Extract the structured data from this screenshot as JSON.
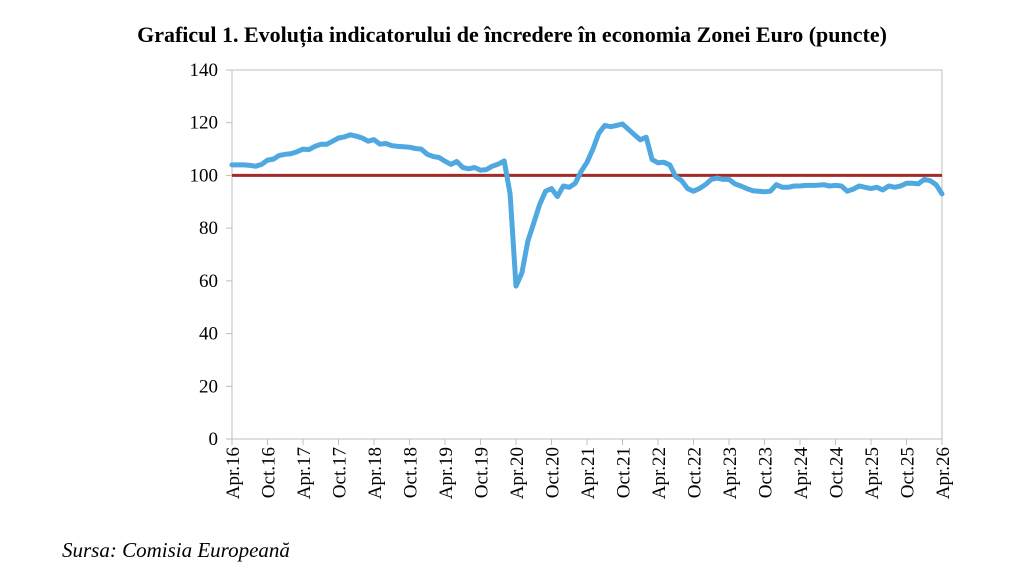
{
  "chart_data": {
    "type": "line",
    "title": "Graficul 1. Evoluția indicatorului de încredere în economia Zonei Euro (puncte)",
    "source": "Sursa: Comisia Europeană",
    "xlabel": "",
    "ylabel": "",
    "ylim": [
      0,
      140
    ],
    "yticks": [
      0,
      20,
      40,
      60,
      80,
      100,
      120,
      140
    ],
    "xticks": [
      "Apr.16",
      "Oct.16",
      "Apr.17",
      "Oct.17",
      "Apr.18",
      "Oct.18",
      "Apr.19",
      "Oct.19",
      "Apr.20",
      "Oct.20",
      "Apr.21",
      "Oct.21",
      "Apr.22",
      "Oct.22",
      "Apr.23",
      "Oct.23",
      "Apr.24",
      "Oct.24",
      "Apr.25",
      "Oct.25",
      "Apr.26"
    ],
    "x_range": [
      "2016-04",
      "2026-04"
    ],
    "grid": false,
    "legend": "none",
    "reference_line": {
      "value": 100,
      "color": "#a52a2a"
    },
    "series": [
      {
        "color": "#4fa8e0",
        "x": [
          "2016-04",
          "2016-05",
          "2016-06",
          "2016-07",
          "2016-08",
          "2016-09",
          "2016-10",
          "2016-11",
          "2016-12",
          "2017-01",
          "2017-02",
          "2017-03",
          "2017-04",
          "2017-05",
          "2017-06",
          "2017-07",
          "2017-08",
          "2017-09",
          "2017-10",
          "2017-11",
          "2017-12",
          "2018-01",
          "2018-02",
          "2018-03",
          "2018-04",
          "2018-05",
          "2018-06",
          "2018-07",
          "2018-08",
          "2018-09",
          "2018-10",
          "2018-11",
          "2018-12",
          "2019-01",
          "2019-02",
          "2019-03",
          "2019-04",
          "2019-05",
          "2019-06",
          "2019-07",
          "2019-08",
          "2019-09",
          "2019-10",
          "2019-11",
          "2019-12",
          "2020-01",
          "2020-02",
          "2020-03",
          "2020-04",
          "2020-05",
          "2020-06",
          "2020-07",
          "2020-08",
          "2020-09",
          "2020-10",
          "2020-11",
          "2020-12",
          "2021-01",
          "2021-02",
          "2021-03",
          "2021-04",
          "2021-05",
          "2021-06",
          "2021-07",
          "2021-08",
          "2021-09",
          "2021-10",
          "2021-11",
          "2021-12",
          "2022-01",
          "2022-02",
          "2022-03",
          "2022-04",
          "2022-05",
          "2022-06",
          "2022-07",
          "2022-08",
          "2022-09",
          "2022-10",
          "2022-11",
          "2022-12",
          "2023-01",
          "2023-02",
          "2023-03",
          "2023-04",
          "2023-05",
          "2023-06",
          "2023-07",
          "2023-08",
          "2023-09",
          "2023-10",
          "2023-11",
          "2023-12",
          "2024-01",
          "2024-02",
          "2024-03",
          "2024-04",
          "2024-05",
          "2024-06",
          "2024-07",
          "2024-08",
          "2024-09",
          "2024-10",
          "2024-11",
          "2024-12",
          "2025-01",
          "2025-02",
          "2025-03",
          "2025-04",
          "2025-05",
          "2025-06",
          "2025-07",
          "2025-08",
          "2025-09",
          "2025-10",
          "2025-11",
          "2025-12",
          "2026-01",
          "2026-02",
          "2026-03",
          "2026-04"
        ],
        "values": [
          104.0,
          104.0,
          104.0,
          103.8,
          103.5,
          104.2,
          105.8,
          106.2,
          107.6,
          108.0,
          108.3,
          109.0,
          110.0,
          109.8,
          111.0,
          111.8,
          111.8,
          113.0,
          114.2,
          114.6,
          115.4,
          114.9,
          114.2,
          113.0,
          113.6,
          111.9,
          112.1,
          111.3,
          111.0,
          110.9,
          110.7,
          110.2,
          110.0,
          108.0,
          107.2,
          106.8,
          105.4,
          104.2,
          105.3,
          103.0,
          102.5,
          103.0,
          102.0,
          102.2,
          103.5,
          104.3,
          105.5,
          93.0,
          58.0,
          63.0,
          75.0,
          82.0,
          89.0,
          94.0,
          95.0,
          92.0,
          96.0,
          95.5,
          97.0,
          101.5,
          105.0,
          110.0,
          116.0,
          119.0,
          118.5,
          119.0,
          119.5,
          117.5,
          115.5,
          113.5,
          114.5,
          106.0,
          104.8,
          105.0,
          104.0,
          99.5,
          98.0,
          95.0,
          94.0,
          95.0,
          96.5,
          98.5,
          99.0,
          98.5,
          98.5,
          96.8,
          96.0,
          95.0,
          94.2,
          94.0,
          93.8,
          94.0,
          96.5,
          95.5,
          95.5,
          96.0,
          96.0,
          96.2,
          96.2,
          96.3,
          96.5,
          96.0,
          96.2,
          96.0,
          94.0,
          94.8,
          96.0,
          95.5,
          95.0,
          95.5,
          94.5,
          96.0,
          95.5,
          96.0,
          97.0,
          97.0,
          96.8,
          98.5,
          98.0,
          96.5,
          93.0
        ]
      }
    ]
  }
}
